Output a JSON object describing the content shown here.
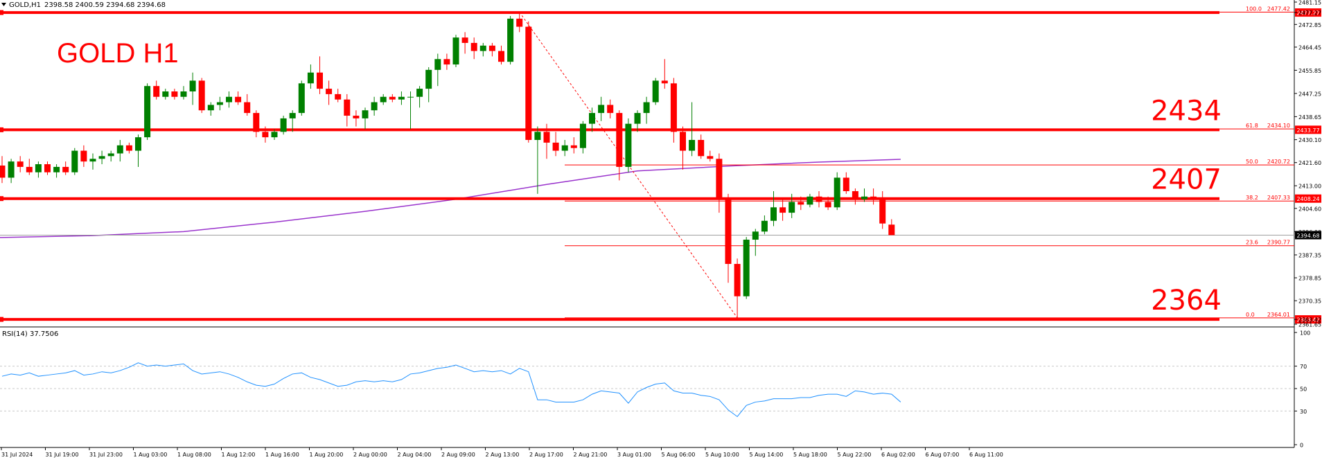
{
  "header": {
    "symbol_label": "GOLD,H1",
    "ohlc_text": "2398.58 2400.59 2394.68 2394.68",
    "chart_title": "GOLD H1"
  },
  "colors": {
    "bull": "#008000",
    "bear": "#ff0000",
    "level_line": "#ff0000",
    "ma_line": "#9932cc",
    "rsi_line": "#1e90ff",
    "grid": "#c8c8c8",
    "axis_text": "#000000"
  },
  "chart_data": [
    {
      "type": "candlestick",
      "symbol": "GOLD",
      "timeframe": "H1",
      "ylim": [
        2361.65,
        2481.15
      ],
      "y_ticks": [
        "2481.15",
        "2477.27",
        "2472.85",
        "2464.45",
        "2455.85",
        "2447.25",
        "2438.65",
        "2430.10",
        "2421.60",
        "2413.00",
        "2404.60",
        "2396.00",
        "2387.35",
        "2378.85",
        "2370.35",
        "2363.42",
        "2361.65"
      ],
      "x_tick_labels": [
        "31 Jul 2024",
        "31 Jul 19:00",
        "31 Jul 23:00",
        "1 Aug 03:00",
        "1 Aug 08:00",
        "1 Aug 12:00",
        "1 Aug 16:00",
        "1 Aug 20:00",
        "2 Aug 00:00",
        "2 Aug 04:00",
        "2 Aug 09:00",
        "2 Aug 13:00",
        "2 Aug 17:00",
        "2 Aug 21:00",
        "3 Aug 01:00",
        "5 Aug 06:00",
        "5 Aug 10:00",
        "5 Aug 14:00",
        "5 Aug 18:00",
        "5 Aug 22:00",
        "6 Aug 02:00",
        "6 Aug 07:00",
        "6 Aug 11:00"
      ],
      "candles": [
        {
          "o": 2420.5,
          "h": 2424,
          "l": 2414,
          "c": 2416
        },
        {
          "o": 2416,
          "h": 2423,
          "l": 2414,
          "c": 2422
        },
        {
          "o": 2422,
          "h": 2424,
          "l": 2418,
          "c": 2420
        },
        {
          "o": 2420,
          "h": 2423,
          "l": 2417,
          "c": 2418
        },
        {
          "o": 2418,
          "h": 2422,
          "l": 2416,
          "c": 2421
        },
        {
          "o": 2421,
          "h": 2422,
          "l": 2417,
          "c": 2418
        },
        {
          "o": 2418,
          "h": 2421,
          "l": 2416,
          "c": 2420
        },
        {
          "o": 2420,
          "h": 2422,
          "l": 2417,
          "c": 2418
        },
        {
          "o": 2418,
          "h": 2427,
          "l": 2417,
          "c": 2426
        },
        {
          "o": 2426,
          "h": 2428,
          "l": 2420,
          "c": 2422
        },
        {
          "o": 2422,
          "h": 2425,
          "l": 2419,
          "c": 2423
        },
        {
          "o": 2423,
          "h": 2426,
          "l": 2421,
          "c": 2424
        },
        {
          "o": 2424,
          "h": 2426,
          "l": 2422,
          "c": 2425
        },
        {
          "o": 2425,
          "h": 2430,
          "l": 2422,
          "c": 2428
        },
        {
          "o": 2428,
          "h": 2429,
          "l": 2425,
          "c": 2426
        },
        {
          "o": 2426,
          "h": 2432,
          "l": 2420,
          "c": 2431
        },
        {
          "o": 2431,
          "h": 2451,
          "l": 2430,
          "c": 2450
        },
        {
          "o": 2450,
          "h": 2452,
          "l": 2445,
          "c": 2446
        },
        {
          "o": 2446,
          "h": 2449,
          "l": 2445,
          "c": 2448
        },
        {
          "o": 2448,
          "h": 2449,
          "l": 2445,
          "c": 2446
        },
        {
          "o": 2446,
          "h": 2450,
          "l": 2445,
          "c": 2448
        },
        {
          "o": 2448,
          "h": 2455,
          "l": 2443,
          "c": 2452
        },
        {
          "o": 2452,
          "h": 2453,
          "l": 2440,
          "c": 2441
        },
        {
          "o": 2441,
          "h": 2444,
          "l": 2439,
          "c": 2443
        },
        {
          "o": 2443,
          "h": 2446,
          "l": 2441,
          "c": 2444
        },
        {
          "o": 2444,
          "h": 2448,
          "l": 2442,
          "c": 2446
        },
        {
          "o": 2446,
          "h": 2448,
          "l": 2443,
          "c": 2444
        },
        {
          "o": 2444,
          "h": 2447,
          "l": 2439,
          "c": 2440
        },
        {
          "o": 2440,
          "h": 2441,
          "l": 2431,
          "c": 2433
        },
        {
          "o": 2433,
          "h": 2435,
          "l": 2429,
          "c": 2431
        },
        {
          "o": 2431,
          "h": 2434,
          "l": 2430,
          "c": 2433
        },
        {
          "o": 2433,
          "h": 2439,
          "l": 2432,
          "c": 2438
        },
        {
          "o": 2438,
          "h": 2441,
          "l": 2433,
          "c": 2440
        },
        {
          "o": 2440,
          "h": 2452,
          "l": 2439,
          "c": 2451
        },
        {
          "o": 2451,
          "h": 2458,
          "l": 2449,
          "c": 2455
        },
        {
          "o": 2455,
          "h": 2461,
          "l": 2447,
          "c": 2449
        },
        {
          "o": 2449,
          "h": 2452,
          "l": 2443,
          "c": 2447
        },
        {
          "o": 2447,
          "h": 2449,
          "l": 2444,
          "c": 2445
        },
        {
          "o": 2445,
          "h": 2447,
          "l": 2435,
          "c": 2439
        },
        {
          "o": 2439,
          "h": 2441,
          "l": 2435,
          "c": 2438
        },
        {
          "o": 2438,
          "h": 2442,
          "l": 2434,
          "c": 2441
        },
        {
          "o": 2441,
          "h": 2446,
          "l": 2439,
          "c": 2444
        },
        {
          "o": 2444,
          "h": 2447,
          "l": 2443,
          "c": 2446
        },
        {
          "o": 2446,
          "h": 2447,
          "l": 2444,
          "c": 2445
        },
        {
          "o": 2445,
          "h": 2448,
          "l": 2443,
          "c": 2446
        },
        {
          "o": 2446,
          "h": 2448,
          "l": 2434,
          "c": 2446
        },
        {
          "o": 2446,
          "h": 2450,
          "l": 2442,
          "c": 2449
        },
        {
          "o": 2449,
          "h": 2457,
          "l": 2444,
          "c": 2456
        },
        {
          "o": 2456,
          "h": 2462,
          "l": 2450,
          "c": 2460
        },
        {
          "o": 2460,
          "h": 2462,
          "l": 2456,
          "c": 2458
        },
        {
          "o": 2458,
          "h": 2469,
          "l": 2457,
          "c": 2468
        },
        {
          "o": 2468,
          "h": 2470,
          "l": 2462,
          "c": 2466
        },
        {
          "o": 2466,
          "h": 2468,
          "l": 2460,
          "c": 2463
        },
        {
          "o": 2463,
          "h": 2466,
          "l": 2461,
          "c": 2465
        },
        {
          "o": 2465,
          "h": 2466,
          "l": 2461,
          "c": 2463
        },
        {
          "o": 2463,
          "h": 2465,
          "l": 2458,
          "c": 2459
        },
        {
          "o": 2459,
          "h": 2476,
          "l": 2458,
          "c": 2475
        },
        {
          "o": 2475,
          "h": 2477,
          "l": 2470,
          "c": 2472
        },
        {
          "o": 2472,
          "h": 2474,
          "l": 2429,
          "c": 2430
        },
        {
          "o": 2430,
          "h": 2435,
          "l": 2410,
          "c": 2433
        },
        {
          "o": 2433,
          "h": 2436,
          "l": 2423,
          "c": 2429
        },
        {
          "o": 2429,
          "h": 2433,
          "l": 2424,
          "c": 2426
        },
        {
          "o": 2426,
          "h": 2430,
          "l": 2424,
          "c": 2428
        },
        {
          "o": 2428,
          "h": 2431,
          "l": 2425,
          "c": 2427
        },
        {
          "o": 2427,
          "h": 2437,
          "l": 2425,
          "c": 2436
        },
        {
          "o": 2436,
          "h": 2442,
          "l": 2433,
          "c": 2440
        },
        {
          "o": 2440,
          "h": 2446,
          "l": 2437,
          "c": 2443
        },
        {
          "o": 2443,
          "h": 2445,
          "l": 2438,
          "c": 2440
        },
        {
          "o": 2440,
          "h": 2441,
          "l": 2415,
          "c": 2420
        },
        {
          "o": 2420,
          "h": 2438,
          "l": 2418,
          "c": 2436
        },
        {
          "o": 2436,
          "h": 2441,
          "l": 2433,
          "c": 2440
        },
        {
          "o": 2440,
          "h": 2446,
          "l": 2436,
          "c": 2444
        },
        {
          "o": 2444,
          "h": 2453,
          "l": 2443,
          "c": 2452
        },
        {
          "o": 2452,
          "h": 2460,
          "l": 2449,
          "c": 2451
        },
        {
          "o": 2451,
          "h": 2453,
          "l": 2429,
          "c": 2433
        },
        {
          "o": 2433,
          "h": 2435,
          "l": 2419,
          "c": 2426
        },
        {
          "o": 2426,
          "h": 2444,
          "l": 2424,
          "c": 2430
        },
        {
          "o": 2430,
          "h": 2432,
          "l": 2423,
          "c": 2424
        },
        {
          "o": 2424,
          "h": 2426,
          "l": 2422,
          "c": 2423
        },
        {
          "o": 2423,
          "h": 2425,
          "l": 2403,
          "c": 2408
        },
        {
          "o": 2408,
          "h": 2410,
          "l": 2377,
          "c": 2384
        },
        {
          "o": 2384,
          "h": 2386,
          "l": 2364,
          "c": 2372
        },
        {
          "o": 2372,
          "h": 2394,
          "l": 2371,
          "c": 2393
        },
        {
          "o": 2393,
          "h": 2397,
          "l": 2387,
          "c": 2396
        },
        {
          "o": 2396,
          "h": 2402,
          "l": 2395,
          "c": 2400
        },
        {
          "o": 2400,
          "h": 2411,
          "l": 2398,
          "c": 2405
        },
        {
          "o": 2405,
          "h": 2408,
          "l": 2400,
          "c": 2403
        },
        {
          "o": 2403,
          "h": 2410,
          "l": 2401,
          "c": 2407
        },
        {
          "o": 2407,
          "h": 2409,
          "l": 2404,
          "c": 2406
        },
        {
          "o": 2406,
          "h": 2410,
          "l": 2405,
          "c": 2409
        },
        {
          "o": 2409,
          "h": 2411,
          "l": 2405,
          "c": 2407
        },
        {
          "o": 2407,
          "h": 2409,
          "l": 2404,
          "c": 2405
        },
        {
          "o": 2405,
          "h": 2418,
          "l": 2404,
          "c": 2416
        },
        {
          "o": 2416,
          "h": 2418,
          "l": 2410,
          "c": 2411
        },
        {
          "o": 2411,
          "h": 2412,
          "l": 2406,
          "c": 2408
        },
        {
          "o": 2408,
          "h": 2412,
          "l": 2407,
          "c": 2409
        },
        {
          "o": 2409,
          "h": 2412,
          "l": 2406,
          "c": 2408
        },
        {
          "o": 2408,
          "h": 2411,
          "l": 2397,
          "c": 2399
        },
        {
          "o": 2398.58,
          "h": 2400.59,
          "l": 2394.68,
          "c": 2394.68
        }
      ],
      "moving_average": [
        {
          "i": 0,
          "v": 2393.8
        },
        {
          "i": 10,
          "v": 2394.5
        },
        {
          "i": 20,
          "v": 2396
        },
        {
          "i": 30,
          "v": 2399.5
        },
        {
          "i": 40,
          "v": 2403.5
        },
        {
          "i": 50,
          "v": 2408
        },
        {
          "i": 60,
          "v": 2413.5
        },
        {
          "i": 70,
          "v": 2418.5
        },
        {
          "i": 80,
          "v": 2420.3
        },
        {
          "i": 90,
          "v": 2421.8
        },
        {
          "i": 99,
          "v": 2422.8
        }
      ],
      "levels": [
        {
          "label": "2434",
          "value": 2433.77,
          "axis_tag": "2433.77",
          "show_big": true
        },
        {
          "label": "2407",
          "value": 2408.24,
          "axis_tag": "2408.24",
          "show_big": true
        },
        {
          "label": "2364",
          "value": 2363.42,
          "axis_tag": "2363.42",
          "show_big": true
        },
        {
          "label": "",
          "value": 2477.27,
          "axis_tag": "2477.27",
          "show_big": false
        }
      ],
      "fibonacci": {
        "start_index": 57,
        "end_index": 81,
        "high": 2477.42,
        "low": 2364.01,
        "levels": [
          {
            "ratio": "100.0",
            "price": "2477.42",
            "value": 2477.42
          },
          {
            "ratio": "61.8",
            "price": "2434.10",
            "value": 2434.1
          },
          {
            "ratio": "50.0",
            "price": "2420.72",
            "value": 2420.72
          },
          {
            "ratio": "38.2",
            "price": "2407.33",
            "value": 2407.33
          },
          {
            "ratio": "23.6",
            "price": "2390.77",
            "value": 2390.77
          },
          {
            "ratio": "0.0",
            "price": "2364.01",
            "value": 2364.01
          }
        ]
      },
      "current_price": "2394.68"
    },
    {
      "type": "line",
      "name": "RSI(14) 37.7506",
      "ylim": [
        0,
        100
      ],
      "y_ticks": [
        0,
        30,
        50,
        70,
        100
      ],
      "grid_levels": [
        30,
        50,
        70
      ],
      "values": [
        61,
        63,
        62,
        64,
        61,
        62,
        63,
        64,
        66,
        62,
        63,
        65,
        64,
        66,
        69,
        73,
        70,
        71,
        70,
        71,
        72,
        66,
        63,
        64,
        65,
        63,
        60,
        56,
        53,
        52,
        54,
        59,
        63,
        64,
        60,
        58,
        55,
        52,
        53,
        56,
        57,
        56,
        57,
        56,
        58,
        63,
        64,
        66,
        68,
        69,
        71,
        68,
        65,
        66,
        65,
        66,
        63,
        68,
        65,
        40,
        40,
        38,
        38,
        38,
        40,
        45,
        48,
        47,
        46,
        37,
        47,
        51,
        54,
        55,
        48,
        46,
        46,
        44,
        43,
        40,
        31,
        25,
        35,
        38,
        39,
        41,
        41,
        41,
        42,
        42,
        44,
        45,
        45,
        43,
        48,
        47,
        45,
        46,
        45,
        38
      ]
    }
  ]
}
